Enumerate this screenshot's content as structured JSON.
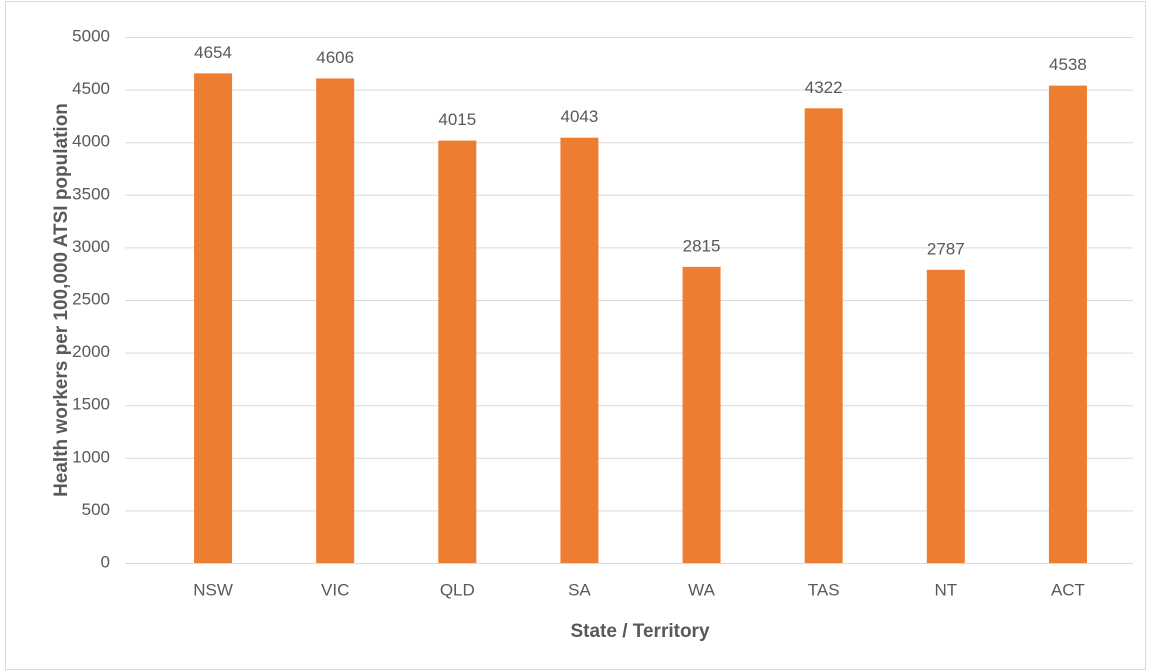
{
  "chart_data": {
    "type": "bar",
    "x_label": "State / Territory",
    "y_label": "Health workers per 100,000 ATSI population",
    "categories": [
      "NSW",
      "VIC",
      "QLD",
      "SA",
      "WA",
      "TAS",
      "NT",
      "ACT"
    ],
    "values": [
      4654,
      4606,
      4015,
      4043,
      2815,
      4322,
      2787,
      4538
    ],
    "color": "#ed7d31",
    "ylim": [
      0,
      5000
    ],
    "yticks": [
      0,
      500,
      1000,
      1500,
      2000,
      2500,
      3000,
      3500,
      4000,
      4500,
      5000
    ],
    "grid": true,
    "data_labels": true
  }
}
